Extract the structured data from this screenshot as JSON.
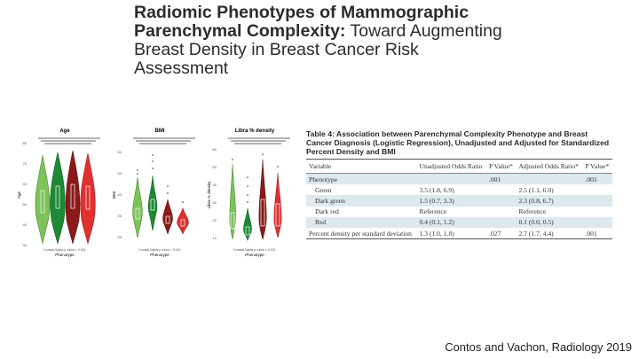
{
  "title": {
    "line1": "Radiomic Phenotypes of Mammographic",
    "line2_bold": "Parenchymal Complexity:",
    "line2_light": " Toward Augmenting",
    "line3": "Breast Density in Breast Cancer Risk Assessment"
  },
  "plots": [
    {
      "title": "Age",
      "ylabel": "Age",
      "xlabel": "Phenotype",
      "yticks": [
        "80",
        "70",
        "60",
        "50",
        "40",
        "30"
      ],
      "pvalue": "Kruskal-Wallis p-value < 0.001"
    },
    {
      "title": "BMI",
      "ylabel": "BMI",
      "xlabel": "Phenotype",
      "yticks": [
        "60",
        "50",
        "40",
        "30",
        "20"
      ],
      "pvalue": "Kruskal-Wallis p-value < 0.001"
    },
    {
      "title": "Libra % density",
      "ylabel": "Libra % density",
      "xlabel": "Phenotype",
      "yticks": [
        "60",
        "50",
        "40",
        "30",
        "20",
        "10"
      ],
      "pvalue": "Kruskal-Wallis p-value < 0.001"
    }
  ],
  "colors": {
    "green": "#7cc35a",
    "dark_green": "#1f8a35",
    "dark_red": "#8c1a1a",
    "red": "#e03030"
  },
  "table": {
    "title": "Table 4: Association between Parenchymal Complexity Phenotype and Breast Cancer Diagnosis (Logistic Regression), Unadjusted and Adjusted for Standardized Percent Density and BMI",
    "headers": [
      "Variable",
      "Unadjusted Odds Ratio",
      "P Value*",
      "Adjusted Odds Ratio*",
      "P Value*"
    ],
    "rows": [
      {
        "cells": [
          "Phenotype",
          "",
          ".001",
          "",
          ".001"
        ],
        "indent": false
      },
      {
        "cells": [
          "Green",
          "3.5 (1.8, 6.9)",
          "",
          "2.5 (1.1, 6.0)",
          ""
        ],
        "indent": true
      },
      {
        "cells": [
          "Dark green",
          "1.5 (0.7, 3.3)",
          "",
          "2.3 (0.8, 6.7)",
          ""
        ],
        "indent": true
      },
      {
        "cells": [
          "Dark red",
          "Reference",
          "",
          "Reference",
          ""
        ],
        "indent": true
      },
      {
        "cells": [
          "Red",
          "0.4 (0.1, 1.2)",
          "",
          "0.1 (0.0, 0.5)",
          ""
        ],
        "indent": true
      },
      {
        "cells": [
          "Percent density per standard deviation",
          "1.3 (1.0, 1.8)",
          ".027",
          "2.7 (1.7, 4.4)",
          ".001"
        ],
        "indent": false
      }
    ]
  },
  "credit": "Contos and Vachon, Radiology 2019"
}
